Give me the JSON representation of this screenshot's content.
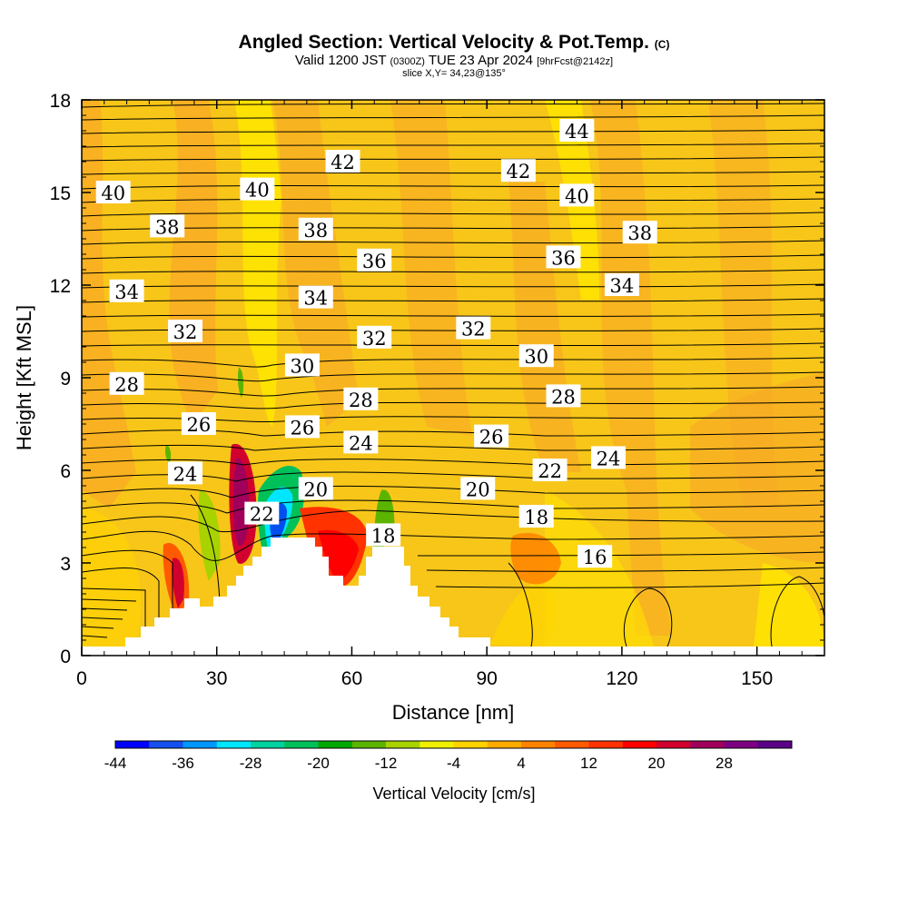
{
  "header": {
    "title_main": "Angled Section: Vertical Velocity & Pot.Temp.",
    "title_mark": "(C)",
    "valid_prefix": "Valid 1200 JST",
    "valid_utc": "(0300Z)",
    "valid_date": "TUE 23 Apr 2024",
    "valid_fcst": "[9hrFcst@2142z]",
    "slice": "slice X,Y= 34,23@135°"
  },
  "chart_data": {
    "type": "heatmap",
    "xlabel": "Distance [nm]",
    "ylabel": "Height [Kft MSL]",
    "xlim": [
      0,
      165
    ],
    "ylim": [
      0,
      18
    ],
    "x_ticks": [
      "0",
      "30",
      "60",
      "90",
      "120",
      "150"
    ],
    "y_ticks": [
      "0",
      "3",
      "6",
      "9",
      "12",
      "15",
      "18"
    ],
    "x_tick_values": [
      0,
      30,
      60,
      90,
      120,
      150
    ],
    "y_tick_values": [
      0,
      3,
      6,
      9,
      12,
      15,
      18
    ],
    "background_color": "#f7c619",
    "contour_field": "potential temperature (C)",
    "contour_levels": [
      16,
      18,
      20,
      22,
      24,
      26,
      28,
      30,
      32,
      34,
      36,
      38,
      40,
      42,
      44
    ],
    "contour_labels": [
      {
        "text": "44",
        "x": 110,
        "y": 17.0
      },
      {
        "text": "42",
        "x": 58,
        "y": 16.0
      },
      {
        "text": "42",
        "x": 97,
        "y": 15.7
      },
      {
        "text": "40",
        "x": 7,
        "y": 15.0
      },
      {
        "text": "40",
        "x": 39,
        "y": 15.1
      },
      {
        "text": "40",
        "x": 110,
        "y": 14.9
      },
      {
        "text": "38",
        "x": 19,
        "y": 13.9
      },
      {
        "text": "38",
        "x": 52,
        "y": 13.8
      },
      {
        "text": "38",
        "x": 124,
        "y": 13.7
      },
      {
        "text": "36",
        "x": 65,
        "y": 12.8
      },
      {
        "text": "36",
        "x": 107,
        "y": 12.9
      },
      {
        "text": "34",
        "x": 10,
        "y": 11.8
      },
      {
        "text": "34",
        "x": 52,
        "y": 11.6
      },
      {
        "text": "34",
        "x": 120,
        "y": 12.0
      },
      {
        "text": "32",
        "x": 23,
        "y": 10.5
      },
      {
        "text": "32",
        "x": 65,
        "y": 10.3
      },
      {
        "text": "32",
        "x": 87,
        "y": 10.6
      },
      {
        "text": "30",
        "x": 49,
        "y": 9.4
      },
      {
        "text": "30",
        "x": 101,
        "y": 9.7
      },
      {
        "text": "28",
        "x": 10,
        "y": 8.8
      },
      {
        "text": "28",
        "x": 62,
        "y": 8.3
      },
      {
        "text": "28",
        "x": 107,
        "y": 8.4
      },
      {
        "text": "26",
        "x": 26,
        "y": 7.5
      },
      {
        "text": "26",
        "x": 49,
        "y": 7.4
      },
      {
        "text": "26",
        "x": 91,
        "y": 7.1
      },
      {
        "text": "24",
        "x": 23,
        "y": 5.9
      },
      {
        "text": "24",
        "x": 62,
        "y": 6.9
      },
      {
        "text": "24",
        "x": 117,
        "y": 6.4
      },
      {
        "text": "22",
        "x": 40,
        "y": 4.6
      },
      {
        "text": "22",
        "x": 104,
        "y": 6.0
      },
      {
        "text": "20",
        "x": 52,
        "y": 5.4
      },
      {
        "text": "20",
        "x": 88,
        "y": 5.4
      },
      {
        "text": "18",
        "x": 67,
        "y": 3.9
      },
      {
        "text": "18",
        "x": 101,
        "y": 4.5
      },
      {
        "text": "16",
        "x": 114,
        "y": 3.2
      }
    ],
    "colorbar": {
      "title": "Vertical Velocity [cm/s]",
      "tick_labels": [
        "-44",
        "-36",
        "-28",
        "-20",
        "-12",
        "-4",
        "4",
        "12",
        "20",
        "28"
      ],
      "colors": [
        "#0000ff",
        "#1450f0",
        "#0096ff",
        "#00e6ff",
        "#00d2a0",
        "#00c05a",
        "#00a800",
        "#5ab400",
        "#a8d200",
        "#f0f000",
        "#ffd200",
        "#ffaa00",
        "#ff8200",
        "#ff5a00",
        "#ff3200",
        "#ff0000",
        "#d2002d",
        "#a0005a",
        "#7d0082",
        "#5a0087"
      ]
    }
  }
}
